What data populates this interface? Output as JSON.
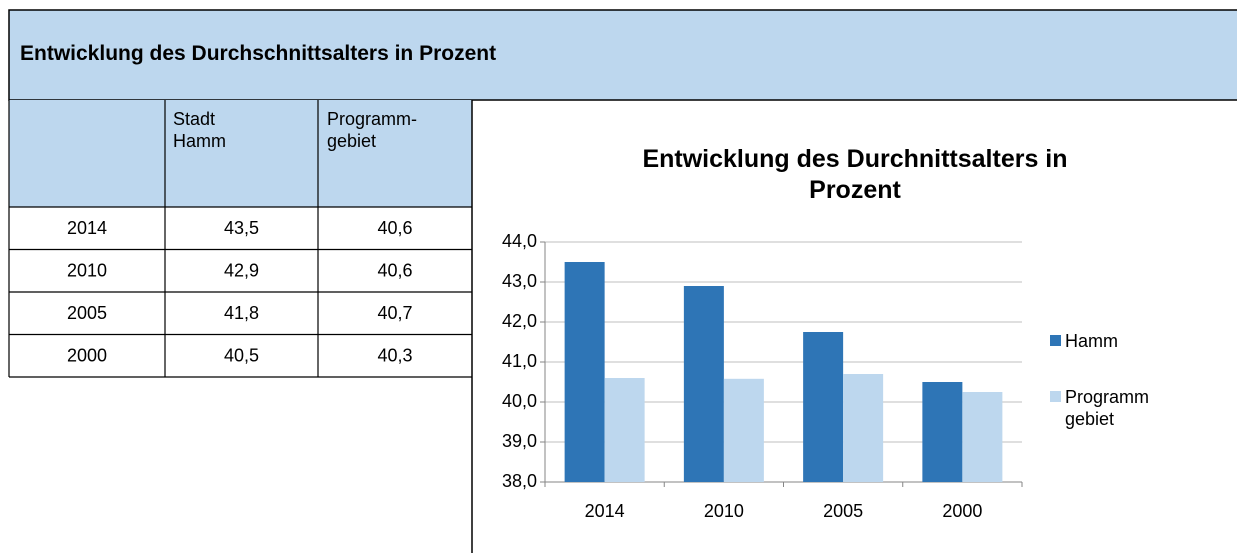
{
  "header": {
    "title": "Entwicklung des Durchschnittsalters in Prozent"
  },
  "table": {
    "header": [
      "Stadt Hamm",
      "Programm-gebiet"
    ],
    "rows": [
      [
        "2014",
        "43,5",
        "40,6"
      ],
      [
        "2010",
        "42,9",
        "40,6"
      ],
      [
        "2005",
        "41,8",
        "40,7"
      ],
      [
        "2000",
        "40,5",
        "40,3"
      ]
    ]
  },
  "chart_data": {
    "type": "bar",
    "title": "Entwicklung des Durchnittsalters in Prozent",
    "categories": [
      "2014",
      "2010",
      "2005",
      "2000"
    ],
    "series": [
      {
        "name": "Hamm",
        "color": "#2e75b6",
        "values": [
          43.5,
          42.9,
          41.75,
          40.5
        ]
      },
      {
        "name": "Programm gebiet",
        "color": "#bdd7ee",
        "values": [
          40.6,
          40.58,
          40.7,
          40.25
        ]
      }
    ],
    "ylim": [
      38,
      44
    ],
    "yticks": [
      {
        "value": 38,
        "label": "38,0"
      },
      {
        "value": 39,
        "label": "39,0"
      },
      {
        "value": 40,
        "label": "40,0"
      },
      {
        "value": 41,
        "label": "41,0"
      },
      {
        "value": 42,
        "label": "42,0"
      },
      {
        "value": 43,
        "label": "43,0"
      },
      {
        "value": 44,
        "label": "44,0"
      }
    ],
    "grid": true,
    "legend": "right"
  }
}
